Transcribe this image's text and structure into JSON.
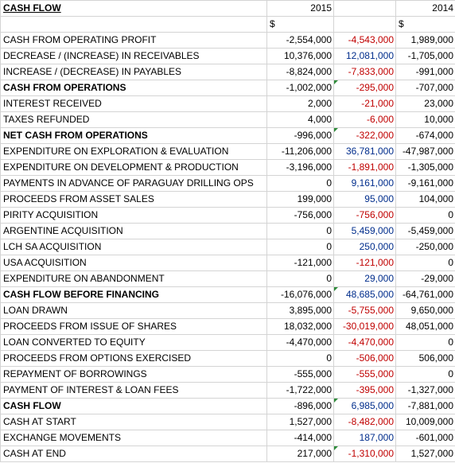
{
  "sheet": {
    "title": "CASH FLOW",
    "year_a": "2015",
    "year_b": "2014",
    "currency": "$",
    "colors": {
      "negative": "#c00000",
      "positive": "#002d8c",
      "comment_flag": "#2e8b3a"
    },
    "rows": [
      {
        "label": "CASH FROM OPERATING PROFIT",
        "v2015": "-2,554,000",
        "diff": "-4,543,000",
        "v2014": "1,989,000",
        "bold": false,
        "flag": false
      },
      {
        "label": "DECREASE / (INCREASE) IN RECEIVABLES",
        "v2015": "10,376,000",
        "diff": "12,081,000",
        "v2014": "-1,705,000",
        "bold": false,
        "flag": false
      },
      {
        "label": "INCREASE / (DECREASE) IN PAYABLES",
        "v2015": "-8,824,000",
        "diff": "-7,833,000",
        "v2014": "-991,000",
        "bold": false,
        "flag": false
      },
      {
        "label": "CASH FROM OPERATIONS",
        "v2015": "-1,002,000",
        "diff": "-295,000",
        "v2014": "-707,000",
        "bold": true,
        "flag": true
      },
      {
        "label": "INTEREST RECEIVED",
        "v2015": "2,000",
        "diff": "-21,000",
        "v2014": "23,000",
        "bold": false,
        "flag": false
      },
      {
        "label": "TAXES REFUNDED",
        "v2015": "4,000",
        "diff": "-6,000",
        "v2014": "10,000",
        "bold": false,
        "flag": false
      },
      {
        "label": "NET CASH FROM OPERATIONS",
        "v2015": "-996,000",
        "diff": "-322,000",
        "v2014": "-674,000",
        "bold": true,
        "flag": true
      },
      {
        "label": "EXPENDITURE ON EXPLORATION & EVALUATION",
        "v2015": "-11,206,000",
        "diff": "36,781,000",
        "v2014": "-47,987,000",
        "bold": false,
        "flag": false
      },
      {
        "label": "EXPENDITURE ON DEVELOPMENT & PRODUCTION",
        "v2015": "-3,196,000",
        "diff": "-1,891,000",
        "v2014": "-1,305,000",
        "bold": false,
        "flag": false
      },
      {
        "label": "PAYMENTS IN ADVANCE OF PARAGUAY DRILLING OPS",
        "v2015": "0",
        "diff": "9,161,000",
        "v2014": "-9,161,000",
        "bold": false,
        "flag": false
      },
      {
        "label": "PROCEEDS FROM ASSET SALES",
        "v2015": "199,000",
        "diff": "95,000",
        "v2014": "104,000",
        "bold": false,
        "flag": false
      },
      {
        "label": "PIRITY ACQUISITION",
        "v2015": "-756,000",
        "diff": "-756,000",
        "v2014": "0",
        "bold": false,
        "flag": false
      },
      {
        "label": "ARGENTINE ACQUISITION",
        "v2015": "0",
        "diff": "5,459,000",
        "v2014": "-5,459,000",
        "bold": false,
        "flag": false
      },
      {
        "label": "LCH SA ACQUISITION",
        "v2015": "0",
        "diff": "250,000",
        "v2014": "-250,000",
        "bold": false,
        "flag": false
      },
      {
        "label": "USA ACQUISITION",
        "v2015": "-121,000",
        "diff": "-121,000",
        "v2014": "0",
        "bold": false,
        "flag": false
      },
      {
        "label": "EXPENDITURE ON ABANDONMENT",
        "v2015": "0",
        "diff": "29,000",
        "v2014": "-29,000",
        "bold": false,
        "flag": false
      },
      {
        "label": "CASH FLOW BEFORE FINANCING",
        "v2015": "-16,076,000",
        "diff": "48,685,000",
        "v2014": "-64,761,000",
        "bold": true,
        "flag": true
      },
      {
        "label": "LOAN DRAWN",
        "v2015": "3,895,000",
        "diff": "-5,755,000",
        "v2014": "9,650,000",
        "bold": false,
        "flag": false
      },
      {
        "label": "PROCEEDS FROM ISSUE OF SHARES",
        "v2015": "18,032,000",
        "diff": "-30,019,000",
        "v2014": "48,051,000",
        "bold": false,
        "flag": false
      },
      {
        "label": "LOAN CONVERTED TO EQUITY",
        "v2015": "-4,470,000",
        "diff": "-4,470,000",
        "v2014": "0",
        "bold": false,
        "flag": false
      },
      {
        "label": "PROCEEDS FROM OPTIONS EXERCISED",
        "v2015": "0",
        "diff": "-506,000",
        "v2014": "506,000",
        "bold": false,
        "flag": false
      },
      {
        "label": "REPAYMENT OF BORROWINGS",
        "v2015": "-555,000",
        "diff": "-555,000",
        "v2014": "0",
        "bold": false,
        "flag": false
      },
      {
        "label": "PAYMENT OF INTEREST & LOAN FEES",
        "v2015": "-1,722,000",
        "diff": "-395,000",
        "v2014": "-1,327,000",
        "bold": false,
        "flag": false
      },
      {
        "label": "CASH FLOW",
        "v2015": "-896,000",
        "diff": "6,985,000",
        "v2014": "-7,881,000",
        "bold": true,
        "flag": true
      },
      {
        "label": "CASH AT START",
        "v2015": "1,527,000",
        "diff": "-8,482,000",
        "v2014": "10,009,000",
        "bold": false,
        "flag": false
      },
      {
        "label": "EXCHANGE MOVEMENTS",
        "v2015": "-414,000",
        "diff": "187,000",
        "v2014": "-601,000",
        "bold": false,
        "flag": false
      },
      {
        "label": "CASH AT END",
        "v2015": "217,000",
        "diff": "-1,310,000",
        "v2014": "1,527,000",
        "bold": false,
        "flag": true
      }
    ]
  }
}
